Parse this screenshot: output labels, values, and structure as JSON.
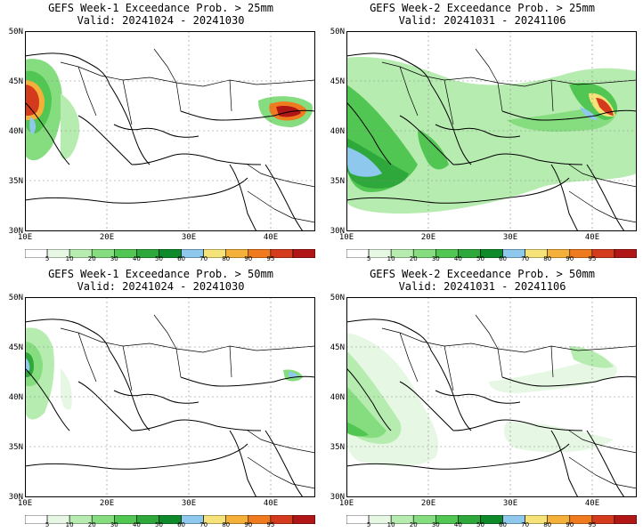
{
  "panels": [
    {
      "title": "GEFS Week-1 Exceedance Prob. > 25mm",
      "valid_label": "Valid: 20241024 - 20241030"
    },
    {
      "title": "GEFS Week-2 Exceedance Prob. > 25mm",
      "valid_label": "Valid: 20241031 - 20241106"
    },
    {
      "title": "GEFS Week-1 Exceedance Prob. > 50mm",
      "valid_label": "Valid: 20241024 - 20241030"
    },
    {
      "title": "GEFS Week-2 Exceedance Prob. > 50mm",
      "valid_label": "Valid: 20241031 - 20241106"
    }
  ],
  "lat_ticks": [
    "50N",
    "45N",
    "40N",
    "35N",
    "30N"
  ],
  "lon_ticks": [
    "10E",
    "20E",
    "30E",
    "40E"
  ],
  "colorbar": {
    "labels": [
      "5",
      "10",
      "20",
      "30",
      "40",
      "50",
      "60",
      "70",
      "80",
      "90",
      "95"
    ],
    "colors": [
      "#ffffff",
      "#e6f7e4",
      "#b6ecb0",
      "#86dd80",
      "#52c652",
      "#2ea83a",
      "#0f8a2a",
      "#8ec8ec",
      "#f5e37a",
      "#f5b03a",
      "#f07a1e",
      "#d43a1c",
      "#b01616"
    ]
  },
  "field_colors": {
    "c5": "#e6f7e4",
    "c10": "#b6ecb0",
    "c20": "#86dd80",
    "c30": "#52c652",
    "c40": "#2ea83a",
    "c50": "#8ec8ec",
    "c60": "#f5e37a",
    "c70": "#f5b03a",
    "c80": "#f07a1e",
    "c90": "#d43a1c",
    "c95": "#b01616"
  }
}
